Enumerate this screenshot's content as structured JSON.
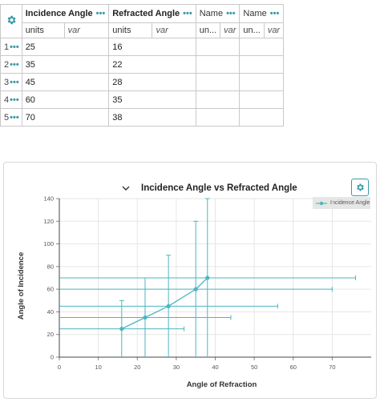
{
  "table": {
    "columns": [
      {
        "name": "Incidence Angle",
        "units": "units",
        "var": "var"
      },
      {
        "name": "Refracted Angle",
        "units": "units",
        "var": "var"
      },
      {
        "name": "Name",
        "units": "un...",
        "var": "var"
      },
      {
        "name": "Name",
        "units": "un...",
        "var": "var"
      }
    ],
    "rows": [
      {
        "num": "1",
        "a": "25",
        "b": "16"
      },
      {
        "num": "2",
        "a": "35",
        "b": "22"
      },
      {
        "num": "3",
        "a": "45",
        "b": "28"
      },
      {
        "num": "4",
        "a": "60",
        "b": "35"
      },
      {
        "num": "5",
        "a": "70",
        "b": "38"
      }
    ],
    "menu_dots": "•••"
  },
  "chart": {
    "expand_icon": "chevron-down-icon",
    "settings_icon": "gear-icon",
    "accent_color": "#4db6c0"
  },
  "chart_data": {
    "type": "scatter",
    "title": "Incidence Angle vs Refracted Angle",
    "xlabel": "Angle of Refraction",
    "ylabel": "Angle of Incidence",
    "xlim": [
      0,
      80
    ],
    "ylim": [
      0,
      140
    ],
    "xticks": [
      "0",
      "10",
      "20",
      "30",
      "40",
      "50",
      "60",
      "70"
    ],
    "yticks": [
      "0",
      "20",
      "40",
      "60",
      "80",
      "100",
      "120",
      "140"
    ],
    "grid": true,
    "legend": "top-right",
    "series": [
      {
        "name": "Incidence Angle",
        "color": "#4db6c0",
        "x": [
          16,
          22,
          28,
          35,
          38
        ],
        "y": [
          25,
          35,
          45,
          60,
          70
        ],
        "x_err": [
          16,
          22,
          28,
          35,
          38
        ],
        "y_err": [
          25,
          35,
          45,
          60,
          70
        ]
      }
    ]
  }
}
